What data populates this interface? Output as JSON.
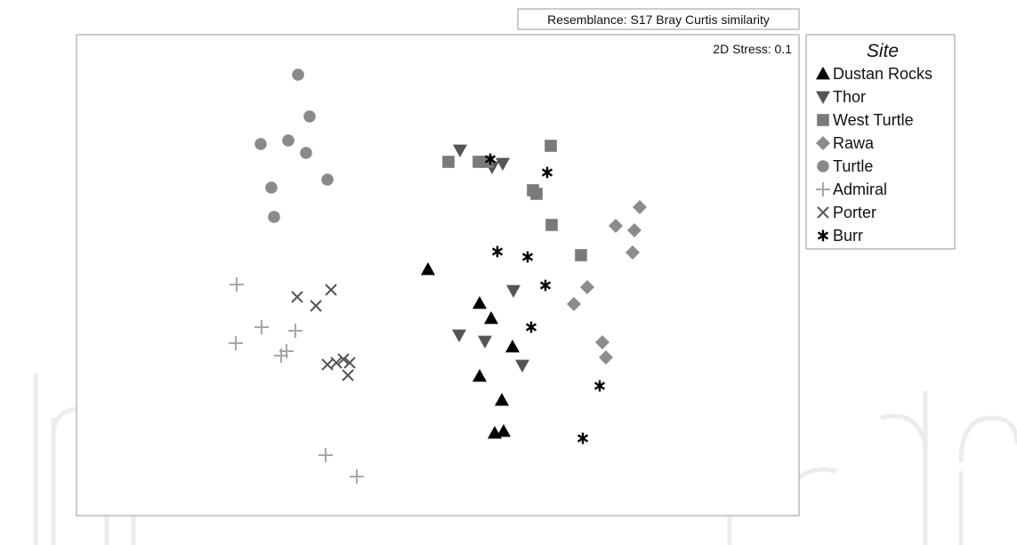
{
  "chart_data": {
    "type": "scatter",
    "title": "",
    "xlabel": "",
    "ylabel": "",
    "resemblance_label": "Resemblance: S17 Bray Curtis similarity",
    "stress_label": "2D Stress: 0.1",
    "legend_title": "Site",
    "legend_position": "right",
    "grid": false,
    "series": [
      {
        "name": "Dustan Rocks",
        "marker": "triangle-up",
        "color": "#000000",
        "points": [
          [
            481,
            303
          ],
          [
            539,
            341
          ],
          [
            552,
            358
          ],
          [
            576,
            390
          ],
          [
            539,
            423
          ],
          [
            564,
            450
          ],
          [
            556,
            487
          ],
          [
            566,
            485
          ]
        ]
      },
      {
        "name": "Thor",
        "marker": "triangle-down",
        "color": "#555555",
        "points": [
          [
            517,
            169
          ],
          [
            553,
            188
          ],
          [
            565,
            184
          ],
          [
            577,
            327
          ],
          [
            516,
            377
          ],
          [
            545,
            384
          ],
          [
            587,
            411
          ]
        ]
      },
      {
        "name": "West Turtle",
        "marker": "square",
        "color": "#7a7a7a",
        "points": [
          [
            504,
            182
          ],
          [
            538,
            182
          ],
          [
            548,
            182
          ],
          [
            619,
            164
          ],
          [
            599,
            214
          ],
          [
            603,
            218
          ],
          [
            620,
            253
          ],
          [
            653,
            287
          ]
        ]
      },
      {
        "name": "Rawa",
        "marker": "diamond",
        "color": "#8c8c8c",
        "points": [
          [
            719,
            233
          ],
          [
            692,
            254
          ],
          [
            713,
            259
          ],
          [
            711,
            284
          ],
          [
            660,
            323
          ],
          [
            645,
            342
          ],
          [
            677,
            385
          ],
          [
            681,
            402
          ]
        ]
      },
      {
        "name": "Turtle",
        "marker": "circle",
        "color": "#8a8a8a",
        "points": [
          [
            335,
            84
          ],
          [
            348,
            131
          ],
          [
            293,
            162
          ],
          [
            324,
            158
          ],
          [
            344,
            172
          ],
          [
            368,
            202
          ],
          [
            305,
            211
          ],
          [
            308,
            244
          ]
        ]
      },
      {
        "name": "Admiral",
        "marker": "plus",
        "color": "#a8a8a8",
        "points": [
          [
            266,
            320
          ],
          [
            294,
            368
          ],
          [
            332,
            372
          ],
          [
            265,
            386
          ],
          [
            322,
            395
          ],
          [
            316,
            400
          ],
          [
            366,
            512
          ],
          [
            401,
            536
          ]
        ]
      },
      {
        "name": "Porter",
        "marker": "x",
        "color": "#555555",
        "points": [
          [
            334,
            334
          ],
          [
            372,
            326
          ],
          [
            355,
            344
          ],
          [
            368,
            410
          ],
          [
            378,
            408
          ],
          [
            386,
            404
          ],
          [
            393,
            408
          ],
          [
            391,
            422
          ]
        ]
      },
      {
        "name": "Burr",
        "marker": "asterisk",
        "color": "#000000",
        "points": [
          [
            551,
            179
          ],
          [
            615,
            194
          ],
          [
            559,
            283
          ],
          [
            593,
            289
          ],
          [
            613,
            321
          ],
          [
            597,
            368
          ],
          [
            674,
            434
          ],
          [
            655,
            493
          ]
        ]
      }
    ]
  },
  "watermark": {
    "text": "IntechOpen"
  }
}
